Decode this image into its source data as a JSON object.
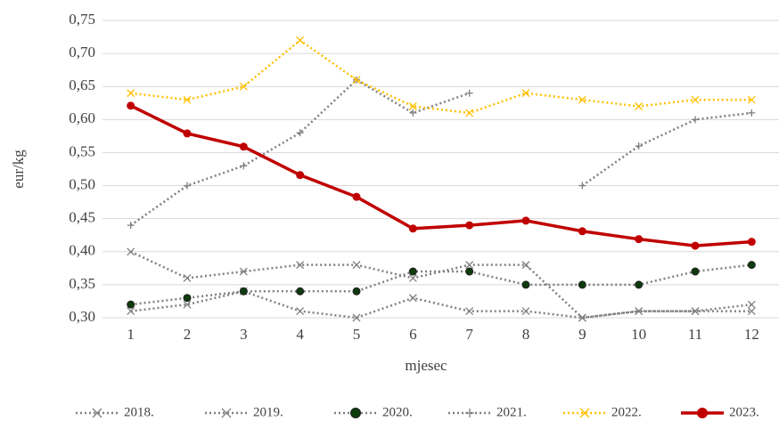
{
  "chart_data": {
    "type": "line",
    "ylabel": "eur/kg",
    "xlabel": "mjesec",
    "categories": [
      "1",
      "2",
      "3",
      "4",
      "5",
      "6",
      "7",
      "8",
      "9",
      "10",
      "11",
      "12"
    ],
    "ylim": [
      0.3,
      0.75
    ],
    "yticks": [
      {
        "value": 0.3,
        "label": "0,30"
      },
      {
        "value": 0.35,
        "label": "0,35"
      },
      {
        "value": 0.4,
        "label": "0,40"
      },
      {
        "value": 0.45,
        "label": "0,45"
      },
      {
        "value": 0.5,
        "label": "0,50"
      },
      {
        "value": 0.55,
        "label": "0,55"
      },
      {
        "value": 0.6,
        "label": "0,60"
      },
      {
        "value": 0.65,
        "label": "0,65"
      },
      {
        "value": 0.7,
        "label": "0,70"
      },
      {
        "value": 0.75,
        "label": "0,75"
      }
    ],
    "grid": true,
    "legend": "bottom",
    "series": [
      {
        "name": "2018.",
        "color": "#808080",
        "marker": "x",
        "dashed": true,
        "values": [
          0.31,
          0.32,
          0.34,
          0.31,
          0.3,
          0.33,
          0.31,
          0.31,
          0.3,
          0.31,
          0.31,
          0.31
        ]
      },
      {
        "name": "2019.",
        "color": "#808080",
        "marker": "x",
        "dashed": true,
        "values": [
          0.4,
          0.36,
          0.37,
          0.38,
          0.38,
          0.36,
          0.38,
          0.38,
          0.3,
          0.31,
          0.31,
          0.32
        ]
      },
      {
        "name": "2020.",
        "color": "#808080",
        "marker": "circle",
        "marker_color": "#0d3b0d",
        "dashed": true,
        "values": [
          0.32,
          0.33,
          0.34,
          0.34,
          0.34,
          0.37,
          0.37,
          0.35,
          0.35,
          0.35,
          0.37,
          0.38
        ]
      },
      {
        "name": "2021.",
        "color": "#808080",
        "marker": "plus",
        "dashed": true,
        "values": [
          0.44,
          0.5,
          0.53,
          0.58,
          0.66,
          0.61,
          0.64,
          null,
          0.5,
          0.56,
          0.6,
          0.61
        ]
      },
      {
        "name": "2022.",
        "color": "#ffc000",
        "marker": "x",
        "dashed": true,
        "values": [
          0.64,
          0.63,
          0.65,
          0.72,
          0.66,
          0.62,
          0.61,
          0.64,
          0.63,
          0.62,
          0.63,
          0.63
        ]
      },
      {
        "name": "2023.",
        "color": "#c00000",
        "marker": "circle",
        "marker_color": "#c00000",
        "dashed": false,
        "values": [
          0.621,
          0.579,
          0.559,
          0.516,
          0.483,
          0.435,
          0.44,
          0.447,
          0.431,
          0.419,
          0.409,
          0.415
        ]
      }
    ]
  }
}
